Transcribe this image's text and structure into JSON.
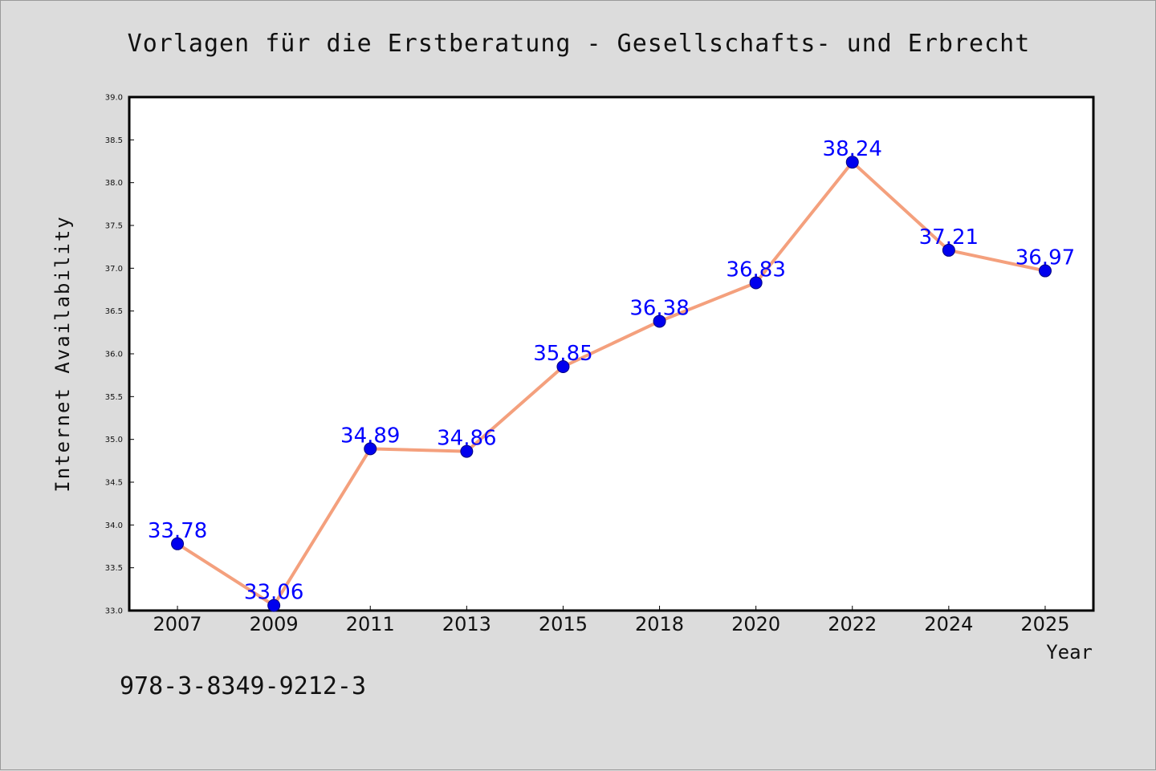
{
  "colors": {
    "background": "#dcdcdc",
    "plot_background": "#ffffff",
    "line": "#f4a07d",
    "marker": "#0000ee",
    "marker_edge": "#000080",
    "data_label": "#0000ff"
  },
  "isbn": "978-3-8349-9212-3",
  "chart_data": {
    "type": "line",
    "title": "Vorlagen für die Erstberatung - Gesellschafts- und Erbrecht",
    "xlabel": "Year",
    "ylabel": "Internet Availability",
    "categories": [
      "2007",
      "2009",
      "2011",
      "2013",
      "2015",
      "2018",
      "2020",
      "2022",
      "2024",
      "2025"
    ],
    "values": [
      33.78,
      33.06,
      34.89,
      34.86,
      35.85,
      36.38,
      36.83,
      38.24,
      37.21,
      36.97
    ],
    "data_labels": [
      "33.78",
      "33.06",
      "34.89",
      "34.86",
      "35.85",
      "36.38",
      "36.83",
      "38.24",
      "37.21",
      "36.97"
    ],
    "ylim": [
      33.0,
      39.0
    ],
    "yticks": [
      "33.0",
      "33.5",
      "34.0",
      "34.5",
      "35.0",
      "35.5",
      "36.0",
      "36.5",
      "37.0",
      "37.5",
      "38.0",
      "38.5",
      "39.0"
    ],
    "grid": false,
    "legend": "none"
  }
}
